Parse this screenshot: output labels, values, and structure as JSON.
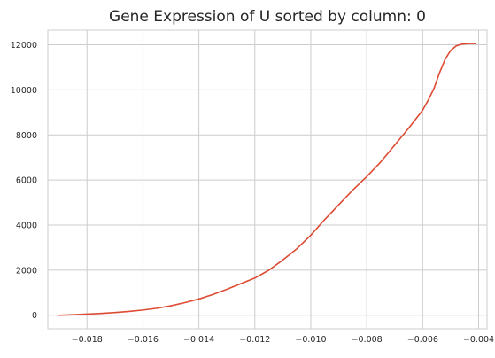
{
  "chart_data": {
    "type": "line",
    "title": "Gene Expression of U sorted by column: 0",
    "xlabel": "",
    "ylabel": "",
    "xlim": [
      -0.0194,
      -0.0037
    ],
    "ylim": [
      -600,
      12650
    ],
    "xticks": [
      -0.018,
      -0.016,
      -0.014,
      -0.012,
      -0.01,
      -0.008,
      -0.006,
      -0.004
    ],
    "xtick_labels": [
      "−0.018",
      "−0.016",
      "−0.014",
      "−0.012",
      "−0.010",
      "−0.008",
      "−0.006",
      "−0.004"
    ],
    "yticks": [
      0,
      2000,
      4000,
      6000,
      8000,
      10000,
      12000
    ],
    "ytick_labels": [
      "0",
      "2000",
      "4000",
      "6000",
      "8000",
      "10000",
      "12000"
    ],
    "grid": true,
    "legend": "none",
    "series": [
      {
        "color": "#dd4b33",
        "x": [
          -0.019,
          -0.0185,
          -0.018,
          -0.0175,
          -0.017,
          -0.0165,
          -0.016,
          -0.0155,
          -0.015,
          -0.0145,
          -0.014,
          -0.0135,
          -0.013,
          -0.0125,
          -0.012,
          -0.0115,
          -0.011,
          -0.0105,
          -0.01,
          -0.0095,
          -0.009,
          -0.0085,
          -0.008,
          -0.0075,
          -0.007,
          -0.0065,
          -0.006,
          -0.0058,
          -0.0056,
          -0.0054,
          -0.0052,
          -0.005,
          -0.0048,
          -0.0046,
          -0.0044,
          -0.0042,
          -0.0041
        ],
        "y": [
          0,
          20,
          50,
          80,
          120,
          170,
          230,
          310,
          420,
          560,
          720,
          920,
          1150,
          1400,
          1650,
          2000,
          2450,
          2950,
          3550,
          4250,
          4900,
          5550,
          6150,
          6800,
          7550,
          8300,
          9100,
          9550,
          10050,
          10750,
          11350,
          11750,
          11950,
          12030,
          12050,
          12060,
          12050
        ]
      }
    ]
  }
}
